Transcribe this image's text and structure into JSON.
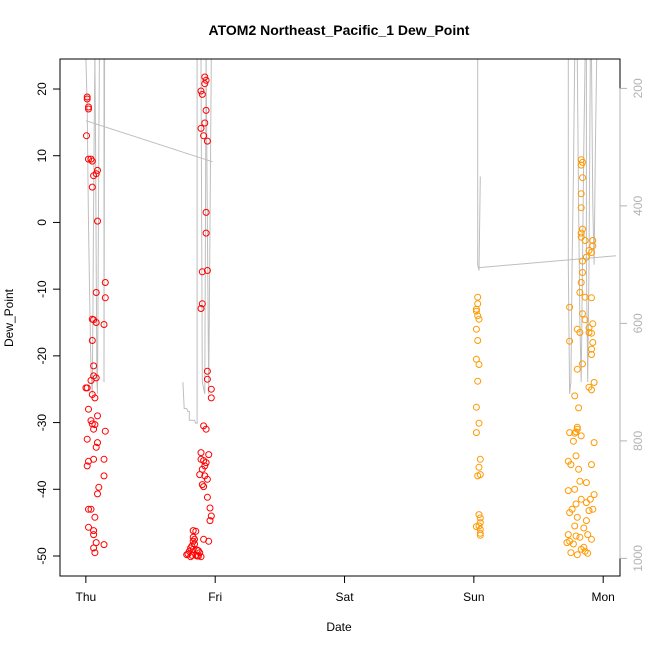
{
  "chart_data": {
    "type": "scatter",
    "title": "ATOM2 Northeast_Pacific_1 Dew_Point",
    "xlabel": "Date",
    "ylabel": "Dew_Point",
    "x_ticks": [
      {
        "label": "Thu",
        "value": 0
      },
      {
        "label": "Fri",
        "value": 1
      },
      {
        "label": "Sat",
        "value": 2
      },
      {
        "label": "Sun",
        "value": 3
      },
      {
        "label": "Mon",
        "value": 4
      }
    ],
    "xlim": [
      -0.2,
      4.13
    ],
    "y_ticks": [
      20,
      10,
      0,
      -10,
      -20,
      -30,
      -40,
      -50
    ],
    "ylim": [
      -53,
      24.5
    ],
    "y2_ticks": [
      200,
      400,
      600,
      800,
      1000
    ],
    "y2lim": [
      1030,
      150
    ],
    "grid": false,
    "colors": {
      "red": "#ff0000",
      "orange": "#ff9900",
      "gray": "#bebebe",
      "axis": "#000000",
      "right_axis": "#b3b3b3"
    },
    "series": [
      {
        "color": "red",
        "points": [
          [
            0.01,
            18.8
          ],
          [
            0.01,
            18.5
          ],
          [
            0.02,
            17.3
          ],
          [
            0.02,
            17.0
          ],
          [
            0.005,
            13.0
          ],
          [
            0.02,
            9.5
          ],
          [
            0.04,
            9.5
          ],
          [
            0.05,
            9.2
          ],
          [
            0.06,
            7.0
          ],
          [
            0.08,
            7.3
          ],
          [
            0.09,
            7.8
          ],
          [
            0.05,
            5.3
          ],
          [
            0.09,
            0.2
          ],
          [
            0.15,
            -9.0
          ],
          [
            0.08,
            -10.5
          ],
          [
            0.15,
            -11.3
          ],
          [
            0.05,
            -14.5
          ],
          [
            0.06,
            -14.6
          ],
          [
            0.08,
            -15.0
          ],
          [
            0.14,
            -15.3
          ],
          [
            0.05,
            -17.7
          ],
          [
            0.06,
            -21.5
          ],
          [
            0.06,
            -23.0
          ],
          [
            0.04,
            -23.7
          ],
          [
            0.08,
            -23.3
          ],
          [
            0.01,
            -24.8
          ],
          [
            0.0,
            -24.8
          ],
          [
            0.05,
            -25.8
          ],
          [
            0.07,
            -26.3
          ],
          [
            0.02,
            -28.0
          ],
          [
            0.09,
            -29.0
          ],
          [
            0.04,
            -29.7
          ],
          [
            0.05,
            -30.2
          ],
          [
            0.06,
            -31.0
          ],
          [
            0.07,
            -30.3
          ],
          [
            0.15,
            -31.3
          ],
          [
            0.01,
            -32.5
          ],
          [
            0.09,
            -33.0
          ],
          [
            0.08,
            -33.7
          ],
          [
            0.02,
            -35.8
          ],
          [
            0.01,
            -36.5
          ],
          [
            0.06,
            -35.5
          ],
          [
            0.14,
            -35.5
          ],
          [
            0.14,
            -38.0
          ],
          [
            0.1,
            -39.7
          ],
          [
            0.09,
            -40.7
          ],
          [
            0.02,
            -43.0
          ],
          [
            0.04,
            -43.0
          ],
          [
            0.07,
            -44.2
          ],
          [
            0.02,
            -45.7
          ],
          [
            0.06,
            -46.2
          ],
          [
            0.06,
            -46.8
          ],
          [
            0.08,
            -48.0
          ],
          [
            0.14,
            -48.3
          ],
          [
            0.06,
            -48.8
          ],
          [
            0.07,
            -49.5
          ],
          [
            0.92,
            21.8
          ],
          [
            0.93,
            21.3
          ],
          [
            0.92,
            20.8
          ],
          [
            0.89,
            19.7
          ],
          [
            0.9,
            19.2
          ],
          [
            0.93,
            16.8
          ],
          [
            0.92,
            14.9
          ],
          [
            0.89,
            14.1
          ],
          [
            0.91,
            13.0
          ],
          [
            0.94,
            12.2
          ],
          [
            0.93,
            1.5
          ],
          [
            0.93,
            -1.6
          ],
          [
            0.94,
            -7.2
          ],
          [
            0.9,
            -7.4
          ],
          [
            0.9,
            -12.2
          ],
          [
            0.89,
            -12.9
          ],
          [
            0.94,
            -22.3
          ],
          [
            0.94,
            -23.5
          ],
          [
            0.97,
            -25.0
          ],
          [
            0.97,
            -26.3
          ],
          [
            0.91,
            -30.5
          ],
          [
            0.93,
            -31.0
          ],
          [
            0.89,
            -34.5
          ],
          [
            0.89,
            -35.5
          ],
          [
            0.91,
            -35.7
          ],
          [
            0.95,
            -34.8
          ],
          [
            0.92,
            -36.5
          ],
          [
            0.93,
            -36.0
          ],
          [
            0.9,
            -37.0
          ],
          [
            0.88,
            -37.8
          ],
          [
            0.92,
            -38.0
          ],
          [
            0.94,
            -38.5
          ],
          [
            0.9,
            -39.3
          ],
          [
            0.91,
            -39.6
          ],
          [
            0.94,
            -41.2
          ],
          [
            0.96,
            -42.8
          ],
          [
            0.97,
            -44.0
          ],
          [
            0.96,
            -44.7
          ],
          [
            0.95,
            -47.8
          ],
          [
            0.91,
            -47.5
          ],
          [
            0.83,
            -46.2
          ],
          [
            0.85,
            -46.3
          ],
          [
            0.83,
            -47.2
          ],
          [
            0.84,
            -47.5
          ],
          [
            0.83,
            -47.8
          ],
          [
            0.84,
            -48.2
          ],
          [
            0.82,
            -48.5
          ],
          [
            0.83,
            -49.0
          ],
          [
            0.81,
            -48.8
          ],
          [
            0.8,
            -49.3
          ],
          [
            0.79,
            -49.7
          ],
          [
            0.78,
            -49.8
          ],
          [
            0.82,
            -49.9
          ],
          [
            0.85,
            -49.9
          ],
          [
            0.86,
            -49.1
          ],
          [
            0.87,
            -49.2
          ],
          [
            0.88,
            -49.5
          ],
          [
            0.87,
            -50.0
          ],
          [
            0.89,
            -50.1
          ],
          [
            0.86,
            -50.0
          ],
          [
            0.81,
            -50.1
          ]
        ]
      },
      {
        "color": "orange",
        "points": [
          [
            3.03,
            -11.2
          ],
          [
            3.03,
            -12.2
          ],
          [
            3.02,
            -13.0
          ],
          [
            3.02,
            -13.3
          ],
          [
            3.03,
            -14.0
          ],
          [
            3.04,
            -14.5
          ],
          [
            3.02,
            -16.0
          ],
          [
            3.03,
            -17.7
          ],
          [
            3.02,
            -20.5
          ],
          [
            3.04,
            -21.3
          ],
          [
            3.03,
            -23.8
          ],
          [
            3.02,
            -27.7
          ],
          [
            3.04,
            -30.1
          ],
          [
            3.02,
            -31.5
          ],
          [
            3.05,
            -35.5
          ],
          [
            3.04,
            -36.7
          ],
          [
            3.05,
            -37.8
          ],
          [
            3.03,
            -38.0
          ],
          [
            3.04,
            -43.8
          ],
          [
            3.05,
            -44.3
          ],
          [
            3.05,
            -45.0
          ],
          [
            3.04,
            -45.5
          ],
          [
            3.02,
            -45.6
          ],
          [
            3.05,
            -46.0
          ],
          [
            3.05,
            -46.6
          ],
          [
            3.05,
            -46.9
          ],
          [
            3.83,
            9.4
          ],
          [
            3.84,
            9.0
          ],
          [
            3.83,
            8.6
          ],
          [
            3.84,
            6.7
          ],
          [
            3.83,
            4.3
          ],
          [
            3.83,
            2.2
          ],
          [
            3.84,
            -1.0
          ],
          [
            3.83,
            -1.6
          ],
          [
            3.83,
            -2.2
          ],
          [
            3.86,
            -2.7
          ],
          [
            3.92,
            -2.7
          ],
          [
            3.92,
            -3.5
          ],
          [
            3.91,
            -4.5
          ],
          [
            3.89,
            -4.2
          ],
          [
            3.87,
            -5.2
          ],
          [
            3.84,
            -5.8
          ],
          [
            3.84,
            -7.5
          ],
          [
            3.83,
            -9.0
          ],
          [
            3.82,
            -10.5
          ],
          [
            3.86,
            -11.2
          ],
          [
            3.91,
            -11.3
          ],
          [
            3.74,
            -12.7
          ],
          [
            3.84,
            -13.7
          ],
          [
            3.86,
            -14.6
          ],
          [
            3.92,
            -15.2
          ],
          [
            3.89,
            -15.8
          ],
          [
            3.8,
            -16.0
          ],
          [
            3.82,
            -16.5
          ],
          [
            3.89,
            -16.5
          ],
          [
            3.91,
            -16.6
          ],
          [
            3.74,
            -17.8
          ],
          [
            3.92,
            -18.0
          ],
          [
            3.91,
            -19.0
          ],
          [
            3.91,
            -19.8
          ],
          [
            3.84,
            -21.2
          ],
          [
            3.8,
            -22.0
          ],
          [
            3.93,
            -24.0
          ],
          [
            3.89,
            -24.7
          ],
          [
            3.91,
            -25.1
          ],
          [
            3.78,
            -26.0
          ],
          [
            3.81,
            -27.8
          ],
          [
            3.8,
            -30.7
          ],
          [
            3.8,
            -31.0
          ],
          [
            3.79,
            -31.4
          ],
          [
            3.74,
            -31.5
          ],
          [
            3.78,
            -31.6
          ],
          [
            3.83,
            -32.0
          ],
          [
            3.93,
            -33.0
          ],
          [
            3.77,
            -32.8
          ],
          [
            3.73,
            -35.8
          ],
          [
            3.75,
            -36.3
          ],
          [
            3.81,
            -37.0
          ],
          [
            3.79,
            -35.0
          ],
          [
            3.91,
            -36.3
          ],
          [
            3.82,
            -38.8
          ],
          [
            3.87,
            -39.0
          ],
          [
            3.73,
            -40.2
          ],
          [
            3.78,
            -40.0
          ],
          [
            3.83,
            -41.5
          ],
          [
            3.9,
            -41.5
          ],
          [
            3.93,
            -40.8
          ],
          [
            3.87,
            -42.0
          ],
          [
            3.79,
            -42.2
          ],
          [
            3.76,
            -43.0
          ],
          [
            3.74,
            -43.5
          ],
          [
            3.89,
            -43.2
          ],
          [
            3.92,
            -43.0
          ],
          [
            3.8,
            -44.2
          ],
          [
            3.87,
            -44.7
          ],
          [
            3.78,
            -45.5
          ],
          [
            3.85,
            -45.8
          ],
          [
            3.73,
            -46.8
          ],
          [
            3.79,
            -47.0
          ],
          [
            3.82,
            -47.2
          ],
          [
            3.88,
            -46.8
          ],
          [
            3.74,
            -47.8
          ],
          [
            3.91,
            -47.5
          ],
          [
            3.77,
            -48.2
          ],
          [
            3.85,
            -48.7
          ],
          [
            3.83,
            -49.0
          ],
          [
            3.86,
            -49.3
          ],
          [
            3.75,
            -49.5
          ],
          [
            3.8,
            -49.8
          ],
          [
            3.88,
            -49.6
          ],
          [
            3.72,
            -48.0
          ]
        ]
      }
    ],
    "pressure_lines": [
      [
        [
          0.0,
          150
        ],
        [
          0.01,
          230
        ],
        [
          0.015,
          330
        ],
        [
          0.02,
          430
        ],
        [
          0.03,
          560
        ],
        [
          0.04,
          680
        ],
        [
          0.05,
          720
        ],
        [
          0.055,
          560
        ],
        [
          0.06,
          400
        ],
        [
          0.065,
          250
        ],
        [
          0.07,
          150
        ]
      ],
      [
        [
          0.07,
          150
        ],
        [
          0.075,
          300
        ],
        [
          0.08,
          500
        ],
        [
          0.085,
          700
        ],
        [
          0.09,
          720
        ],
        [
          0.095,
          500
        ],
        [
          0.1,
          300
        ],
        [
          0.105,
          150
        ]
      ],
      [
        [
          0.14,
          150
        ],
        [
          0.14,
          700
        ],
        [
          0.145,
          150
        ]
      ],
      [
        [
          0.0,
          255
        ],
        [
          0.98,
          325
        ]
      ],
      [
        [
          0.17,
          150
        ],
        [
          1.7,
          135
        ]
      ],
      [
        [
          0.75,
          700
        ],
        [
          0.76,
          745
        ],
        [
          0.78,
          745
        ],
        [
          0.79,
          750
        ],
        [
          0.8,
          750
        ],
        [
          0.8,
          765
        ],
        [
          0.84,
          765
        ],
        [
          0.85,
          770
        ],
        [
          0.86,
          770
        ],
        [
          0.86,
          150
        ]
      ],
      [
        [
          0.89,
          150
        ],
        [
          0.9,
          700
        ],
        [
          0.92,
          720
        ],
        [
          0.93,
          150
        ]
      ],
      [
        [
          0.93,
          150
        ],
        [
          0.95,
          720
        ],
        [
          0.97,
          150
        ]
      ],
      [
        [
          3.03,
          150
        ],
        [
          3.03,
          500
        ],
        [
          3.04,
          510
        ],
        [
          3.05,
          350
        ]
      ],
      [
        [
          3.04,
          505
        ],
        [
          4.1,
          485
        ]
      ],
      [
        [
          3.73,
          150
        ],
        [
          3.73,
          500
        ],
        [
          3.74,
          720
        ],
        [
          3.75,
          700
        ],
        [
          3.76,
          500
        ],
        [
          3.77,
          350
        ],
        [
          3.78,
          150
        ]
      ],
      [
        [
          3.8,
          150
        ],
        [
          3.81,
          400
        ],
        [
          3.82,
          600
        ],
        [
          3.83,
          700
        ],
        [
          3.84,
          500
        ],
        [
          3.85,
          300
        ],
        [
          3.86,
          150
        ]
      ],
      [
        [
          3.87,
          150
        ],
        [
          3.87,
          500
        ],
        [
          3.88,
          700
        ],
        [
          3.89,
          500
        ],
        [
          3.9,
          150
        ]
      ],
      [
        [
          3.91,
          150
        ],
        [
          3.92,
          400
        ],
        [
          3.93,
          500
        ],
        [
          3.94,
          300
        ],
        [
          3.95,
          150
        ]
      ]
    ]
  }
}
